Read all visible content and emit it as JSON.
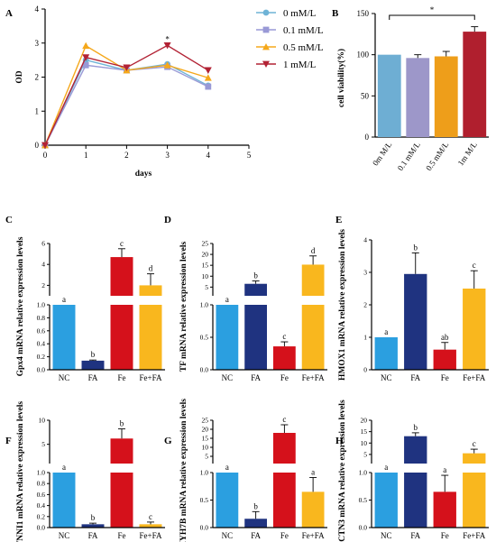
{
  "chart_data": [
    {
      "panel": "A",
      "type": "line",
      "xlabel": "days",
      "ylabel": "OD",
      "xlim": [
        0,
        5
      ],
      "ylim": [
        0,
        4
      ],
      "x_ticks": [
        "0",
        "1",
        "2",
        "3",
        "4",
        "5"
      ],
      "y_ticks": [
        "0",
        "1",
        "2",
        "3",
        "4"
      ],
      "x": [
        0,
        1,
        2,
        3,
        4
      ],
      "legend_position": "top-right",
      "series": [
        {
          "name": "0 mM/L",
          "color": "#6fb3d6",
          "marker": "circle",
          "values": [
            0,
            2.5,
            2.2,
            2.38,
            1.75
          ]
        },
        {
          "name": "0.1 mM/L",
          "color": "#9999d6",
          "marker": "square",
          "values": [
            0,
            2.35,
            2.2,
            2.3,
            1.72
          ]
        },
        {
          "name": "0.5 mM/L",
          "color": "#f5a81b",
          "marker": "triangle-up",
          "values": [
            0,
            2.92,
            2.2,
            2.35,
            1.98
          ]
        },
        {
          "name": "1 mM/L",
          "color": "#b22234",
          "marker": "triangle-down",
          "values": [
            0,
            2.58,
            2.28,
            2.93,
            2.2
          ]
        }
      ],
      "annotations": [
        {
          "label": "*",
          "x": 3
        }
      ]
    },
    {
      "panel": "B",
      "type": "bar",
      "ylabel": "cell viability(%)",
      "ylim": [
        0,
        150
      ],
      "y_ticks": [
        "0",
        "50",
        "100",
        "150"
      ],
      "categories": [
        "0m M/L",
        "0.1 mM/L",
        "0.5 mM/L",
        "1m M/L"
      ],
      "values": [
        100,
        96,
        98,
        128
      ],
      "errors": [
        0,
        4,
        6,
        6
      ],
      "colors": [
        "#6eaed3",
        "#9d97c9",
        "#ee9e1a",
        "#b01f2e"
      ],
      "significance": [
        {
          "from": 0,
          "to": 3,
          "label": "*"
        }
      ]
    },
    {
      "panel": "C",
      "type": "bar",
      "ylabel": "Gpx4 mRNA relative expression levels",
      "broken_axis": true,
      "lower_ylim": [
        0,
        1.0
      ],
      "upper_ylim": [
        1,
        6
      ],
      "lower_ticks": [
        "0.0",
        "0.2",
        "0.4",
        "0.6",
        "0.8",
        "1.0"
      ],
      "upper_ticks": [
        "2",
        "4",
        "6"
      ],
      "categories": [
        "NC",
        "FA",
        "Fe",
        "Fe+FA"
      ],
      "values": [
        1.0,
        0.14,
        4.7,
        2.0
      ],
      "errors": [
        0,
        0.01,
        0.8,
        1.1
      ],
      "letters": [
        "a",
        "b",
        "c",
        "d"
      ],
      "colors": [
        "#2b9fe0",
        "#1f3380",
        "#d5111b",
        "#f9b71e"
      ]
    },
    {
      "panel": "D",
      "type": "bar",
      "ylabel": "TF mRNA relative expression levels",
      "broken_axis": true,
      "lower_ylim": [
        0,
        1.0
      ],
      "upper_ylim": [
        1,
        25
      ],
      "lower_ticks": [
        "0.0",
        "0.5",
        "1.0"
      ],
      "upper_ticks": [
        "5",
        "10",
        "15",
        "20",
        "25"
      ],
      "categories": [
        "NC",
        "FA",
        "Fe",
        "Fe+FA"
      ],
      "values": [
        1.0,
        6.5,
        0.36,
        15.3
      ],
      "errors": [
        0,
        1.3,
        0.07,
        4.0
      ],
      "letters": [
        "a",
        "b",
        "c",
        "d"
      ],
      "colors": [
        "#2b9fe0",
        "#1f3380",
        "#d5111b",
        "#f9b71e"
      ]
    },
    {
      "panel": "E",
      "type": "bar",
      "ylabel": "HMOX1 mRNA relative expression levels",
      "ylim": [
        0,
        4
      ],
      "y_ticks": [
        "0",
        "1",
        "2",
        "3",
        "4"
      ],
      "categories": [
        "NC",
        "FA",
        "Fe",
        "Fe+FA"
      ],
      "values": [
        1.0,
        2.95,
        0.62,
        2.5
      ],
      "errors": [
        0,
        0.65,
        0.22,
        0.55
      ],
      "letters": [
        "a",
        "b",
        "ab",
        "c"
      ],
      "colors": [
        "#2b9fe0",
        "#1f3380",
        "#d5111b",
        "#f9b71e"
      ]
    },
    {
      "panel": "F",
      "type": "bar",
      "ylabel": "TNNI1 mRNA relative expression levels",
      "broken_axis": true,
      "lower_ylim": [
        0,
        1.0
      ],
      "upper_ylim": [
        1,
        10
      ],
      "lower_ticks": [
        "0.0",
        "0.2",
        "0.4",
        "0.6",
        "0.8",
        "1.0"
      ],
      "upper_ticks": [
        "5",
        "10"
      ],
      "categories": [
        "NC",
        "FA",
        "Fe",
        "Fe+FA"
      ],
      "values": [
        1.0,
        0.06,
        6.2,
        0.06
      ],
      "errors": [
        0,
        0.02,
        2.0,
        0.04
      ],
      "letters": [
        "a",
        "b",
        "b",
        "c"
      ],
      "colors": [
        "#2b9fe0",
        "#1f3380",
        "#d5111b",
        "#f9b71e"
      ]
    },
    {
      "panel": "G",
      "type": "bar",
      "ylabel": "MYH7B mRNA relative expression levels",
      "broken_axis": true,
      "lower_ylim": [
        0,
        1.0
      ],
      "upper_ylim": [
        1,
        25
      ],
      "lower_ticks": [
        "0.0",
        "0.5",
        "1.0"
      ],
      "upper_ticks": [
        "5",
        "10",
        "15",
        "20",
        "25"
      ],
      "categories": [
        "NC",
        "FA",
        "Fe",
        "Fe+FA"
      ],
      "values": [
        1.0,
        0.16,
        18.0,
        0.65
      ],
      "errors": [
        0,
        0.13,
        4.5,
        0.26
      ],
      "letters": [
        "a",
        "b",
        "c",
        "a"
      ],
      "colors": [
        "#2b9fe0",
        "#1f3380",
        "#d5111b",
        "#f9b71e"
      ]
    },
    {
      "panel": "H",
      "type": "bar",
      "ylabel": "ACTN3 mRNA relative expression levels",
      "broken_axis": true,
      "lower_ylim": [
        0,
        1.0
      ],
      "upper_ylim": [
        1,
        20
      ],
      "lower_ticks": [
        "0.0",
        "0.5",
        "1.0"
      ],
      "upper_ticks": [
        "5",
        "10",
        "15",
        "20"
      ],
      "categories": [
        "NC",
        "FA",
        "Fe",
        "Fe+FA"
      ],
      "values": [
        1.0,
        13.0,
        0.65,
        5.5
      ],
      "errors": [
        0,
        1.5,
        0.3,
        1.8
      ],
      "letters": [
        "a",
        "b",
        "a",
        "c"
      ],
      "colors": [
        "#2b9fe0",
        "#1f3380",
        "#d5111b",
        "#f9b71e"
      ]
    }
  ]
}
